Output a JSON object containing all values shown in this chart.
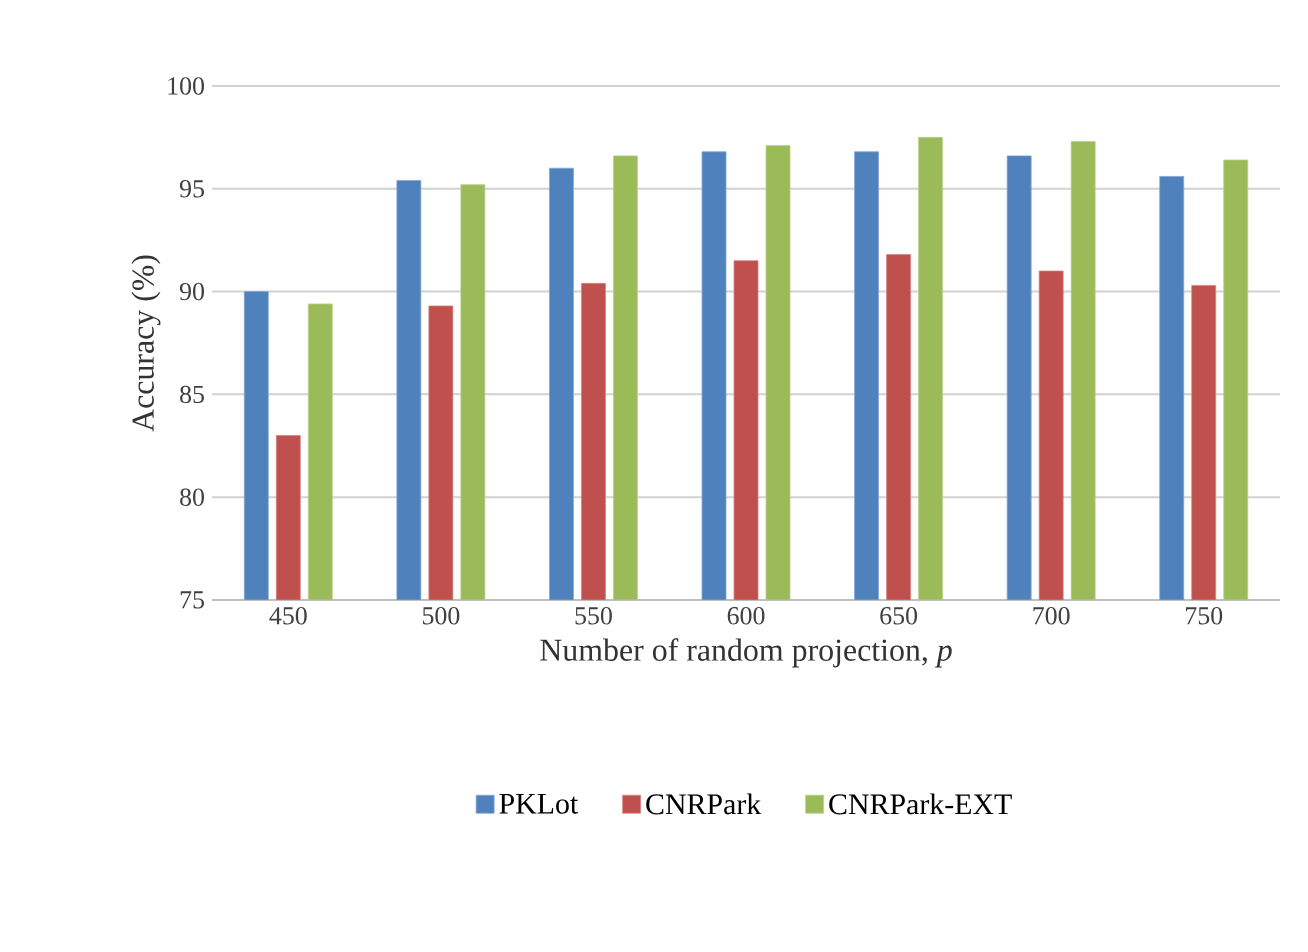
{
  "chart_data": {
    "type": "bar",
    "xlabel": "Number of random projection, *p*",
    "ylabel": "Accuracy (%)",
    "categories": [
      "450",
      "500",
      "550",
      "600",
      "650",
      "700",
      "750"
    ],
    "series": [
      {
        "name": "PKLot",
        "color": "#4f81bd",
        "values": [
          90.0,
          95.4,
          96.0,
          96.8,
          96.8,
          96.6,
          95.6
        ]
      },
      {
        "name": "CNRPark",
        "color": "#c0504d",
        "values": [
          83.0,
          89.3,
          90.4,
          91.5,
          91.8,
          91.0,
          90.3
        ]
      },
      {
        "name": "CNRPark-EXT",
        "color": "#9bbb59",
        "values": [
          89.4,
          95.2,
          96.6,
          97.1,
          97.5,
          97.3,
          96.4
        ]
      }
    ],
    "ylim": [
      75,
      100
    ],
    "yticks": [
      75,
      80,
      85,
      90,
      95,
      100
    ],
    "grid": "y",
    "legend": "bottom"
  }
}
